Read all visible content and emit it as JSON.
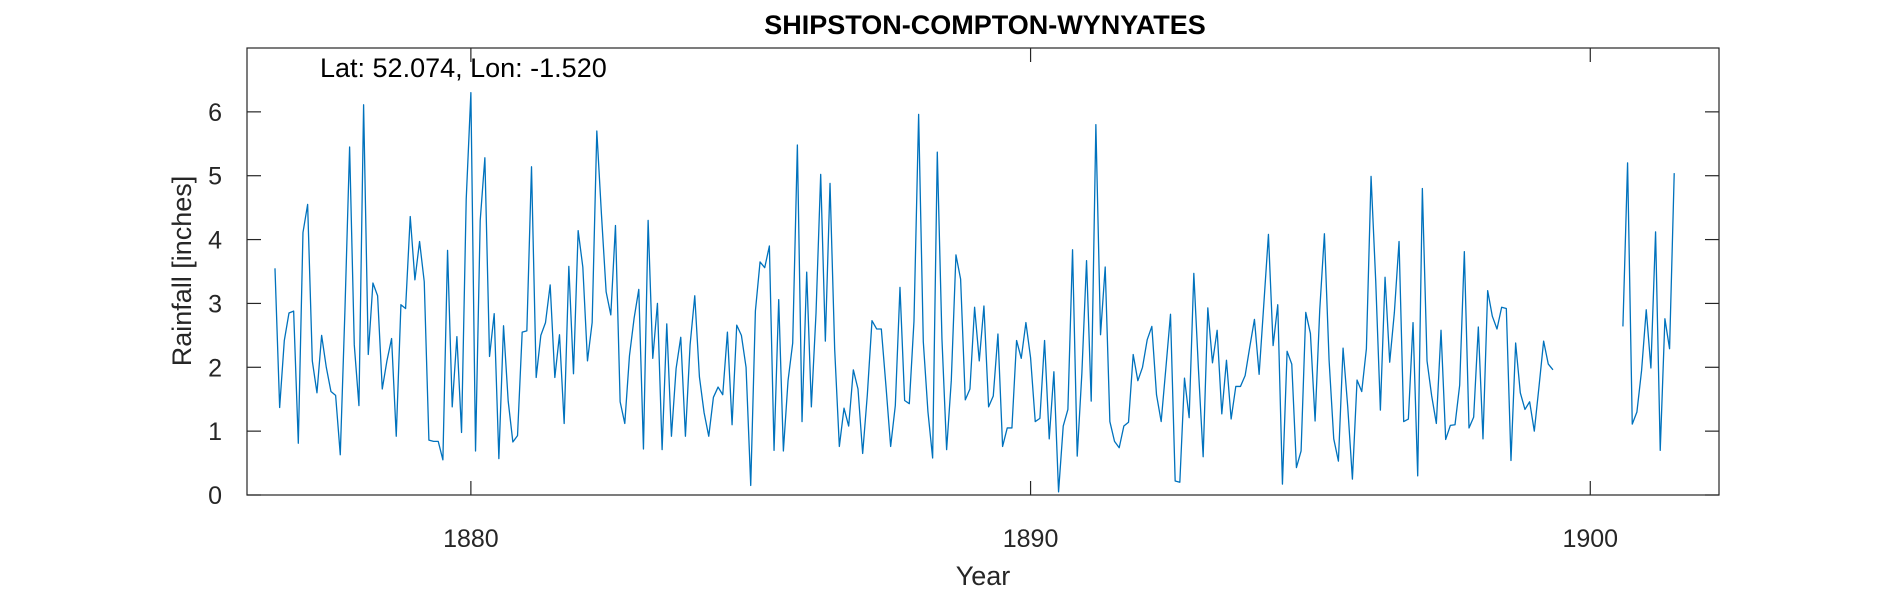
{
  "chart_data": {
    "type": "line",
    "title": "SHIPSTON-COMPTON-WYNYATES",
    "annotation": "Lat: 52.074, Lon: -1.520",
    "xlabel": "Year",
    "ylabel": "Rainfall [inches]",
    "xlim": [
      1876.0,
      1902.3
    ],
    "ylim": [
      0,
      7
    ],
    "xticks": [
      1880,
      1890,
      1900
    ],
    "yticks": [
      0,
      1,
      2,
      3,
      4,
      5,
      6
    ],
    "grid": false,
    "box": true,
    "line_color": "#0072BD",
    "series": [
      {
        "start_year": 1876.5,
        "step_months": 1,
        "segments": [
          {
            "start_index": 0,
            "values": [
              3.55,
              1.37,
              2.42,
              2.85,
              2.88,
              0.81,
              4.11,
              4.55,
              2.1,
              1.6,
              2.5,
              2.0,
              1.62,
              1.56,
              0.63,
              2.9,
              5.45,
              2.35,
              1.4,
              6.11,
              2.2,
              3.32,
              3.12,
              1.66,
              2.1,
              2.45,
              0.92,
              2.98,
              2.92,
              4.36,
              3.37,
              3.97,
              3.34,
              0.86,
              0.84,
              0.84,
              0.55,
              3.83,
              1.38,
              2.48,
              0.98,
              4.63,
              6.3,
              0.69,
              4.3,
              5.28,
              2.17,
              2.84,
              0.57,
              2.65,
              1.47,
              0.83,
              0.93,
              2.55,
              2.57,
              5.14,
              1.84,
              2.5,
              2.7,
              3.29,
              1.84,
              2.51,
              1.12,
              3.58,
              1.9,
              4.14,
              3.57,
              2.1,
              2.7,
              5.7,
              4.39,
              3.18,
              2.82,
              4.22,
              1.46,
              1.12,
              2.18,
              2.77,
              3.22,
              0.72,
              4.3,
              2.14,
              3.0,
              0.71,
              2.68,
              0.92,
              1.98,
              2.47,
              0.92,
              2.35,
              3.12,
              1.85,
              1.29,
              0.92,
              1.53,
              1.69,
              1.57,
              2.55,
              1.1,
              2.66,
              2.5,
              2.0,
              0.15,
              2.88,
              3.65,
              3.56,
              3.9,
              0.7,
              3.06,
              0.69,
              1.79,
              2.38,
              5.48,
              1.15,
              3.49,
              1.38,
              2.85,
              5.02,
              2.41,
              4.88,
              2.28,
              0.76,
              1.36,
              1.08,
              1.96,
              1.66,
              0.65,
              1.57,
              2.73,
              2.6,
              2.6,
              1.7,
              0.76,
              1.4,
              3.25,
              1.48,
              1.43,
              2.72,
              5.96,
              2.4,
              1.3,
              0.58,
              5.37,
              2.44,
              0.71,
              1.79,
              3.76,
              3.38,
              1.49,
              1.66,
              2.94,
              2.1,
              2.96,
              1.38,
              1.55,
              2.52,
              0.76,
              1.05,
              1.05,
              2.42,
              2.14,
              2.7,
              2.15,
              1.15,
              1.2,
              2.42,
              0.88,
              1.93,
              0.05,
              1.08,
              1.34,
              3.84,
              0.61,
              1.91,
              3.67,
              1.47,
              5.8,
              2.51,
              3.57,
              1.15,
              0.84,
              0.74,
              1.08,
              1.14,
              2.2,
              1.79,
              2.0,
              2.43,
              2.64,
              1.57,
              1.15,
              1.98,
              2.83,
              0.22,
              0.2,
              1.83,
              1.21,
              3.47,
              1.96,
              0.6,
              2.93,
              2.07,
              2.58,
              1.27,
              2.11,
              1.19,
              1.7,
              1.7,
              1.87,
              2.32,
              2.75,
              1.89,
              2.98,
              4.08,
              2.34,
              2.98,
              0.17,
              2.25,
              2.05,
              0.43,
              0.69,
              2.86,
              2.53,
              1.16,
              2.9,
              4.09,
              2.11,
              0.88,
              0.53,
              2.3,
              1.38,
              0.25,
              1.8,
              1.62,
              2.29,
              4.99,
              3.35,
              1.33,
              3.41,
              2.08,
              2.86,
              3.97,
              1.15,
              1.19,
              2.7,
              0.3,
              4.8,
              2.1,
              1.55,
              1.12,
              2.58,
              0.87,
              1.09,
              1.1,
              1.72,
              3.81,
              1.05,
              1.22,
              2.63,
              0.88,
              3.2,
              2.8,
              2.6,
              2.94,
              2.92,
              0.54,
              2.38,
              1.6,
              1.34,
              1.46,
              1.0,
              1.69,
              2.41,
              2.05,
              1.96
            ]
          },
          {
            "start_index": 289,
            "values": [
              2.64,
              5.2,
              1.11,
              1.3,
              1.95,
              2.9,
              1.99,
              4.12,
              0.7,
              2.76,
              2.29,
              5.04
            ]
          }
        ]
      }
    ]
  }
}
